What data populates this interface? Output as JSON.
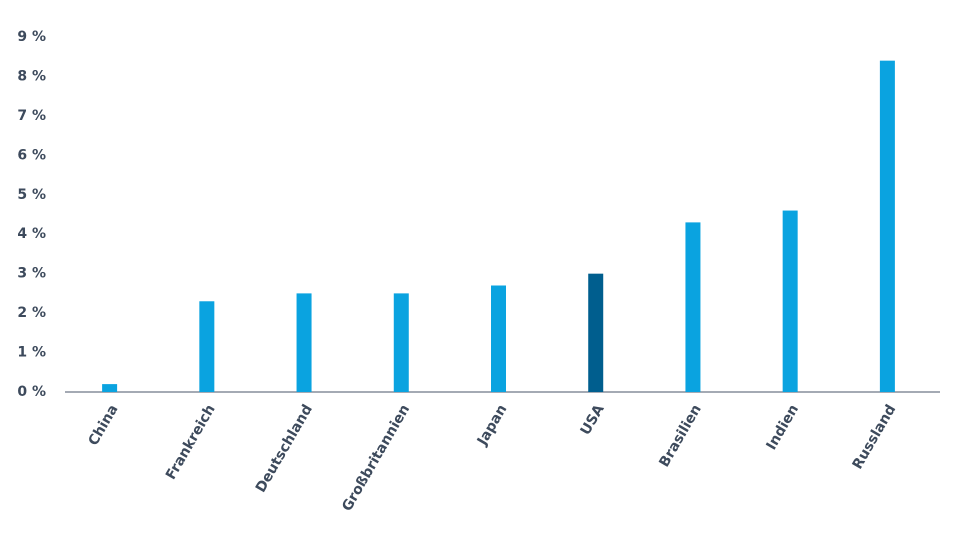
{
  "chart_data": {
    "type": "bar",
    "categories": [
      "China",
      "Frankreich",
      "Deutschland",
      "Großbritannien",
      "Japan",
      "USA",
      "Brasilien",
      "Indien",
      "Russland"
    ],
    "values": [
      0.2,
      2.3,
      2.5,
      2.5,
      2.7,
      3.0,
      4.3,
      4.6,
      8.4
    ],
    "colors": [
      "#0aa3e0",
      "#0aa3e0",
      "#0aa3e0",
      "#0aa3e0",
      "#0aa3e0",
      "#005e8e",
      "#0aa3e0",
      "#0aa3e0",
      "#0aa3e0"
    ],
    "ylim": [
      0,
      9
    ],
    "yticks": [
      {
        "value": 0,
        "label": "0 %"
      },
      {
        "value": 1,
        "label": "1 %"
      },
      {
        "value": 2,
        "label": "2 %"
      },
      {
        "value": 3,
        "label": "3 %"
      },
      {
        "value": 4,
        "label": "4 %"
      },
      {
        "value": 5,
        "label": "5 %"
      },
      {
        "value": 6,
        "label": "6 %"
      },
      {
        "value": 7,
        "label": "7 %"
      },
      {
        "value": 8,
        "label": "8 %"
      },
      {
        "value": 9,
        "label": "9 %"
      }
    ],
    "grid": false
  }
}
